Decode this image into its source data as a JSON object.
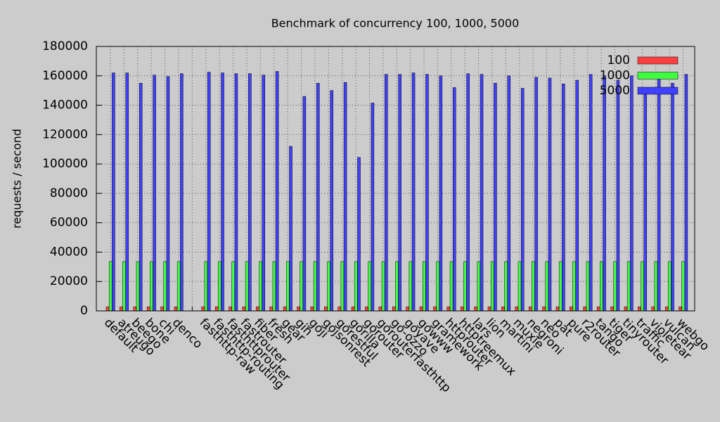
{
  "chart_data": {
    "type": "bar",
    "title": "Benchmark of concurrency 100, 1000, 5000",
    "y_label": "requests / second",
    "categories": [
      "default",
      "atreugo",
      "beego",
      "bone",
      "chi",
      "denco",
      null,
      "fasthttp-raw",
      "fasthttp-routing",
      "fasthttprouter",
      "fastrouter",
      "fiber",
      "fresh",
      "gear",
      "gin",
      "goji",
      "gojsonrest",
      "gorestful",
      "gorilla",
      "gorouter",
      "gorouterfasthttp",
      "go-ozzo",
      "goyave",
      "gowww",
      "gramework",
      "httprouter",
      "httptreemux",
      "lars",
      "lion",
      "martini",
      "muxie",
      "negroni",
      "neo",
      "pat",
      "pure",
      "r2router",
      "tango",
      "tiger",
      "tinyrouter",
      "traffic",
      "violetear",
      "vulcan",
      "webgo"
    ],
    "series": [
      {
        "name": "100",
        "color": "#ff4040",
        "values": [
          2800,
          2800,
          2800,
          2800,
          2800,
          2800,
          null,
          2800,
          2800,
          2800,
          2800,
          2800,
          2800,
          2800,
          2800,
          2800,
          2800,
          2800,
          2800,
          2800,
          2800,
          2800,
          2800,
          2800,
          2800,
          2800,
          2800,
          2800,
          2800,
          2800,
          2800,
          2800,
          2800,
          2800,
          2800,
          2800,
          2800,
          2800,
          2800,
          2800,
          2800,
          2800,
          2800
        ]
      },
      {
        "name": "1000",
        "color": "#40ff40",
        "values": [
          33500,
          33500,
          33500,
          33500,
          33500,
          33500,
          null,
          33500,
          33500,
          33500,
          33500,
          33500,
          33500,
          33500,
          33500,
          33500,
          33500,
          33500,
          33500,
          33500,
          33500,
          33500,
          33500,
          33500,
          33500,
          33500,
          33500,
          33500,
          33500,
          33500,
          33500,
          33500,
          33500,
          33500,
          33500,
          33500,
          33500,
          33500,
          33500,
          33500,
          33500,
          33500,
          33500
        ]
      },
      {
        "name": "5000",
        "color": "#4040ff",
        "values": [
          162000,
          162000,
          155000,
          160500,
          159500,
          161500,
          null,
          162500,
          162000,
          161500,
          161500,
          160500,
          163000,
          112000,
          146000,
          155000,
          150000,
          155500,
          104500,
          141500,
          161000,
          161000,
          162000,
          161000,
          160000,
          152000,
          161500,
          161000,
          155000,
          160000,
          151500,
          159000,
          158500,
          154500,
          157000,
          161000,
          160000,
          157000,
          160000,
          152000,
          161000,
          155000,
          161000
        ]
      }
    ],
    "ylim": [
      0,
      180000
    ],
    "yticks": [
      0,
      20000,
      40000,
      60000,
      80000,
      100000,
      120000,
      140000,
      160000,
      180000
    ],
    "grid": true,
    "legend": "top-right"
  }
}
